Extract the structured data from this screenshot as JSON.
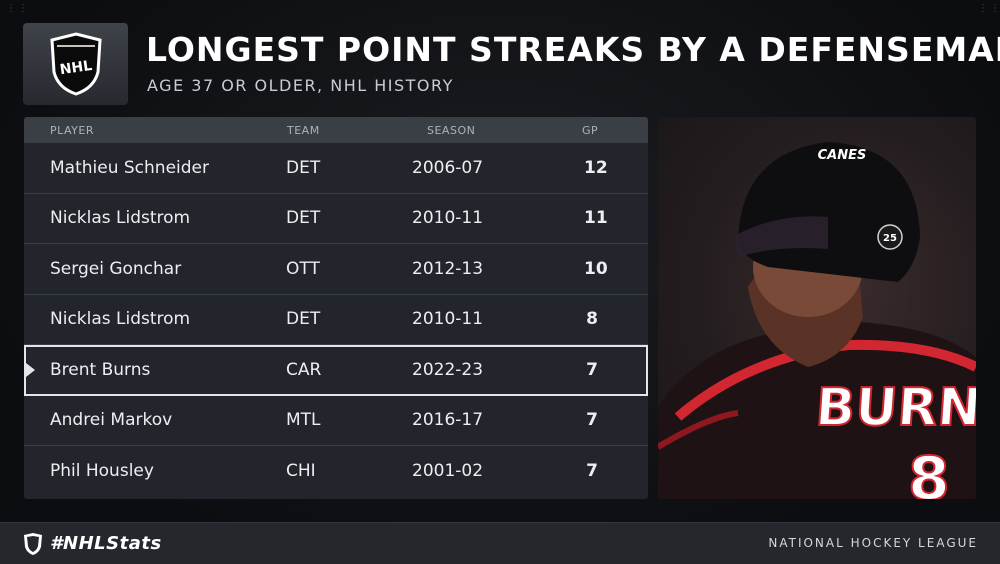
{
  "header": {
    "title": "LONGEST POINT STREAKS BY A DEFENSEMAN",
    "subtitle": "AGE 37 OR OLDER, NHL HISTORY",
    "logo_text": "NHL"
  },
  "table": {
    "columns": [
      "PLAYER",
      "TEAM",
      "SEASON",
      "GP"
    ],
    "rows": [
      {
        "player": "Mathieu Schneider",
        "team": "DET",
        "season": "2006-07",
        "gp": "12"
      },
      {
        "player": "Nicklas Lidstrom",
        "team": "DET",
        "season": "2010-11",
        "gp": "11"
      },
      {
        "player": "Sergei Gonchar",
        "team": "OTT",
        "season": "2012-13",
        "gp": "10"
      },
      {
        "player": "Nicklas Lidstrom",
        "team": "DET",
        "season": "2010-11",
        "gp": "8"
      },
      {
        "player": "Brent Burns",
        "team": "CAR",
        "season": "2022-23",
        "gp": "7"
      },
      {
        "player": "Andrei Markov",
        "team": "MTL",
        "season": "2016-17",
        "gp": "7"
      },
      {
        "player": "Phil Housley",
        "team": "CHI",
        "season": "2001-02",
        "gp": "7"
      }
    ],
    "highlighted_row": 4
  },
  "photo": {
    "helmet_text": "CANES",
    "jersey_text": "BURNS",
    "patch_text": "25",
    "icons": [
      "player-photo"
    ]
  },
  "footer": {
    "hashtag": "#NHLStats",
    "league": "NATIONAL HOCKEY LEAGUE"
  },
  "colors": {
    "background": "#111216",
    "table_bg": "#22252b",
    "header_bg": "#3a3e45",
    "highlight_border": "#e3e5e8",
    "jersey_red": "#d22630"
  }
}
